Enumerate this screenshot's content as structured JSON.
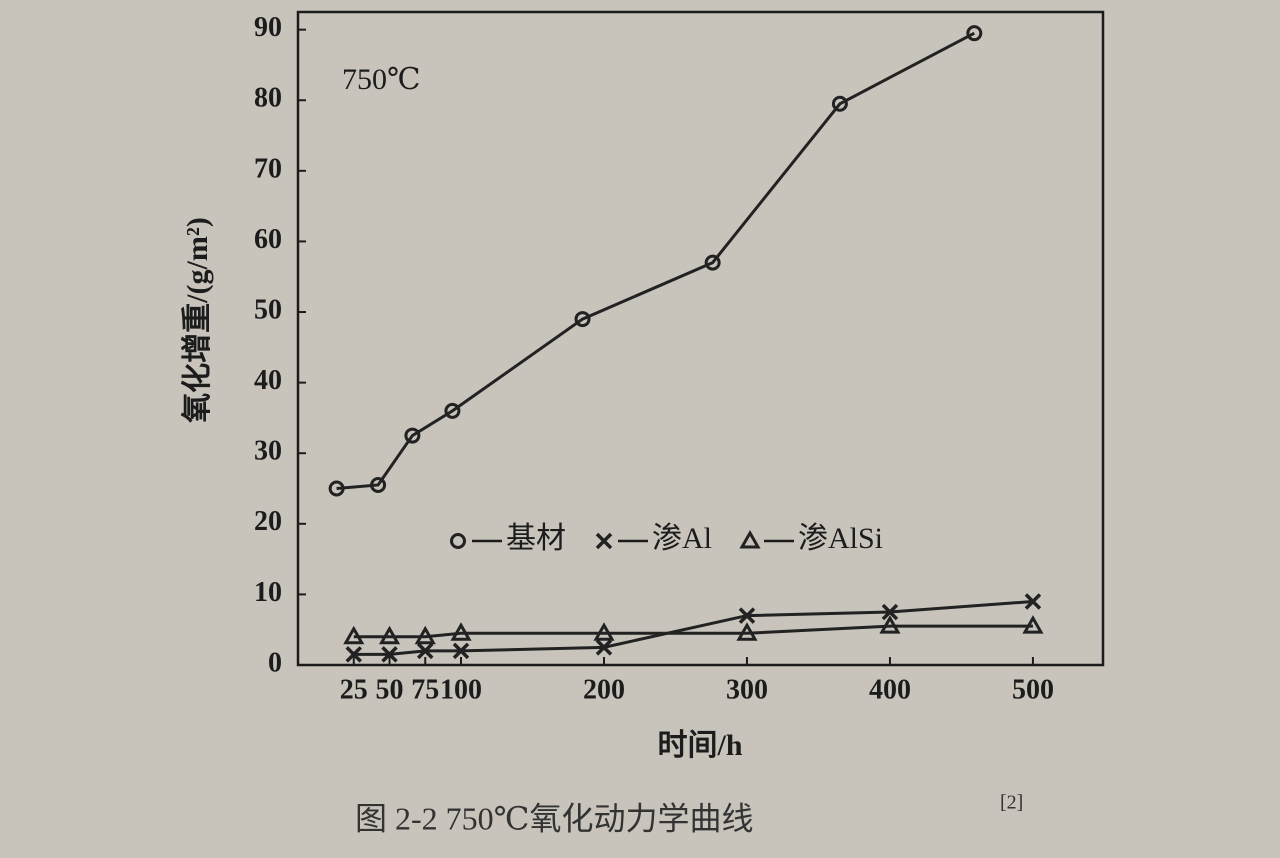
{
  "chart_data": {
    "type": "line",
    "annotation": "750℃",
    "y_label": "氧化增重/(g/m²)",
    "x_label": "时间/h",
    "caption": "图 2-2   750℃氧化动力学曲线",
    "caption_ref": "[2]",
    "xlim": [
      -14,
      549
    ],
    "ylim": [
      0,
      92.5
    ],
    "xticks": [
      25,
      50,
      75,
      100,
      200,
      300,
      400,
      500
    ],
    "yticks": [
      0,
      10,
      20,
      30,
      40,
      50,
      60,
      70,
      80,
      90
    ],
    "series": [
      {
        "name": "基材",
        "color": "#222222",
        "marker": "circle",
        "x": [
          13,
          42,
          66,
          94,
          185,
          276,
          365,
          459
        ],
        "values": [
          25,
          25.5,
          32.5,
          36,
          49,
          57,
          79.5,
          89.5
        ]
      },
      {
        "name": "渗Al",
        "color": "#222222",
        "marker": "x",
        "x": [
          25,
          50,
          75,
          100,
          200,
          300,
          400,
          500
        ],
        "values": [
          1.5,
          1.5,
          2,
          2,
          2.5,
          7,
          7.5,
          9
        ]
      },
      {
        "name": "渗AlSi",
        "color": "#222222",
        "marker": "triangle",
        "x": [
          25,
          50,
          75,
          100,
          200,
          300,
          400,
          500
        ],
        "values": [
          4,
          4,
          4,
          4.5,
          4.5,
          4.5,
          5.5,
          5.5
        ]
      }
    ]
  }
}
